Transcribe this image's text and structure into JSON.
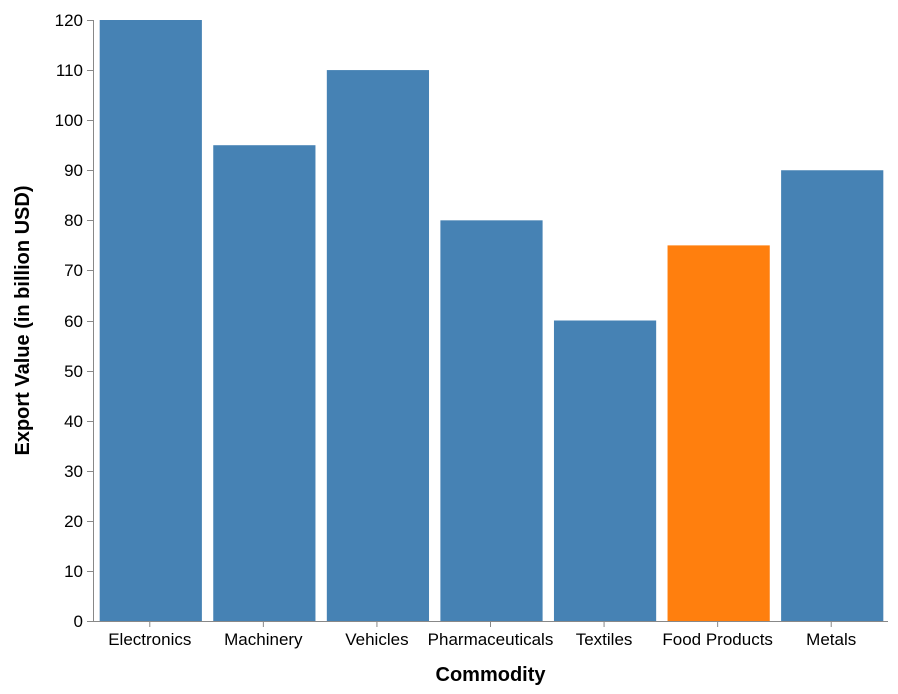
{
  "chart_data": {
    "type": "bar",
    "title": "",
    "xlabel": "Commodity",
    "ylabel": "Export Value (in billion USD)",
    "ylim": [
      0,
      120
    ],
    "yticks": [
      0,
      10,
      20,
      30,
      40,
      50,
      60,
      70,
      80,
      90,
      100,
      110,
      120
    ],
    "grid": false,
    "legend": "none",
    "categories": [
      "Electronics",
      "Machinery",
      "Vehicles",
      "Pharmaceuticals",
      "Textiles",
      "Food Products",
      "Metals"
    ],
    "values": [
      120,
      95,
      110,
      80,
      60,
      75,
      90
    ],
    "highlight_category": "Food Products",
    "colors": {
      "default": "#4682b4",
      "highlight": "#ff7f0e",
      "axis": "#888888"
    }
  }
}
